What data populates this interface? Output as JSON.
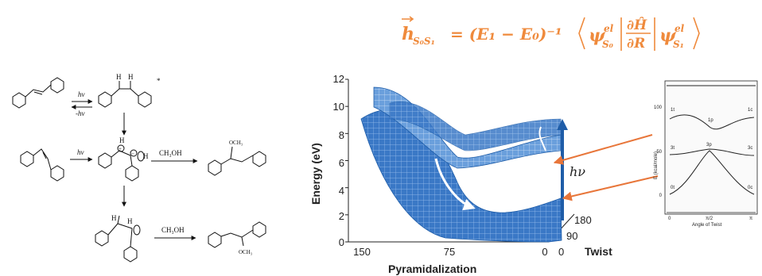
{
  "equation": {
    "lhs": "h",
    "lhs_sub": "S₀S₁",
    "mid": "= (E₁ − E₀)⁻¹",
    "bra": "ψ",
    "bra_sup": "el",
    "bra_sub": "S₀",
    "op_num": "∂Ĥ",
    "op_den": "∂R",
    "ket": "ψ",
    "ket_sup": "el",
    "ket_sub": "S₁",
    "color": "#ef8a3c"
  },
  "scheme": {
    "hv1": "hν",
    "hv_back": "-hν",
    "hv2": "hν",
    "h1": "H",
    "h2": "H",
    "h3": "H",
    "h4": "H",
    "h5": "H",
    "h6": "H",
    "plus": "+",
    "minus": "−",
    "meoh1": "CH₃OH",
    "meoh2": "CH₃OH",
    "och3_1": "OCH₃",
    "och3_2": "OCH₃",
    "star": "*"
  },
  "surface_plot": {
    "ylabel": "Energy (eV)",
    "yticks": [
      "0",
      "2",
      "4",
      "6",
      "8",
      "10",
      "12"
    ],
    "xlabel": "Pyramidalization",
    "xticks": [
      "150",
      "75",
      "0"
    ],
    "zlabel": "Twist",
    "zticks": [
      "0",
      "90",
      "180"
    ],
    "arrow_label": "hν",
    "surface_color": "#2f6fbf",
    "arrow_color": "#1f5da8",
    "pointer_color": "#e8763a"
  },
  "inset": {
    "yticks": [
      "0",
      "50",
      "100"
    ],
    "ylabel": "E (kcal/mole)",
    "xticks": [
      "0",
      "π/2",
      "π"
    ],
    "xlabel": "Angle of Twist",
    "labels": [
      "1t",
      "1p",
      "1c",
      "3t",
      "3p",
      "3c",
      "0t",
      "0c"
    ]
  }
}
